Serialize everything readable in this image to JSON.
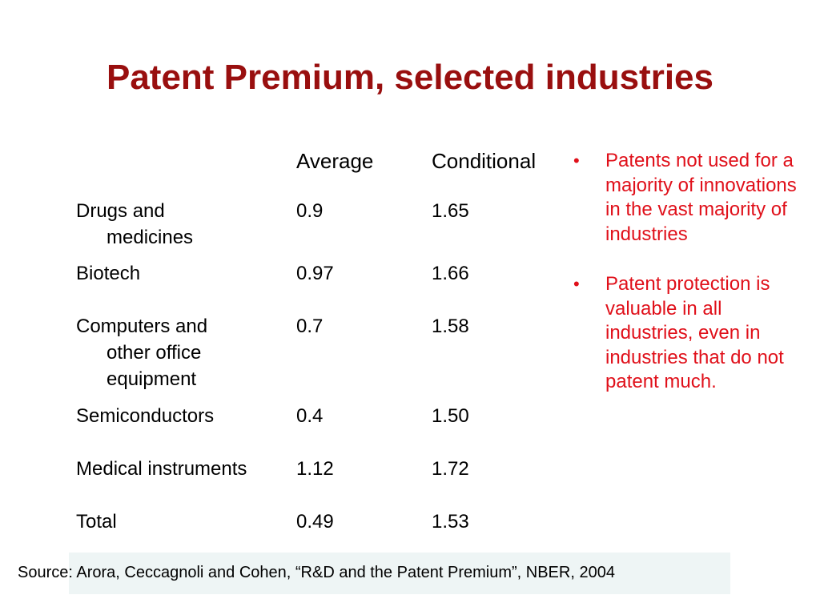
{
  "slide": {
    "title": "Patent Premium, selected industries"
  },
  "table": {
    "headers": {
      "industry": "",
      "average": "Average",
      "conditional": "Conditional"
    },
    "rows": [
      {
        "industry_lines": [
          "Drugs and",
          "medicines"
        ],
        "average": "0.9",
        "conditional": "1.65"
      },
      {
        "industry_lines": [
          "Biotech"
        ],
        "average": "0.97",
        "conditional": "1.66"
      },
      {
        "industry_lines": [
          "Computers and",
          "other office",
          "equipment"
        ],
        "average": "0.7",
        "conditional": "1.58"
      },
      {
        "industry_lines": [
          "Semiconductors"
        ],
        "average": "0.4",
        "conditional": "1.50"
      },
      {
        "industry_lines": [
          "Medical instruments"
        ],
        "average": "1.12",
        "conditional": "1.72"
      },
      {
        "industry_lines": [
          "Total"
        ],
        "average": "0.49",
        "conditional": "1.53"
      }
    ]
  },
  "bullets": [
    "Patents not used for a majority of innovations in the vast majority of industries",
    "Patent protection is valuable in all industries, even in industries that do not patent much."
  ],
  "source": "Source: Arora, Ceccagnoli and Cohen, “R&D and the Patent Premium”, NBER, 2004",
  "colors": {
    "title": "#990f0f",
    "bullets": "#e0101a",
    "source_background": "#eef5f5"
  }
}
